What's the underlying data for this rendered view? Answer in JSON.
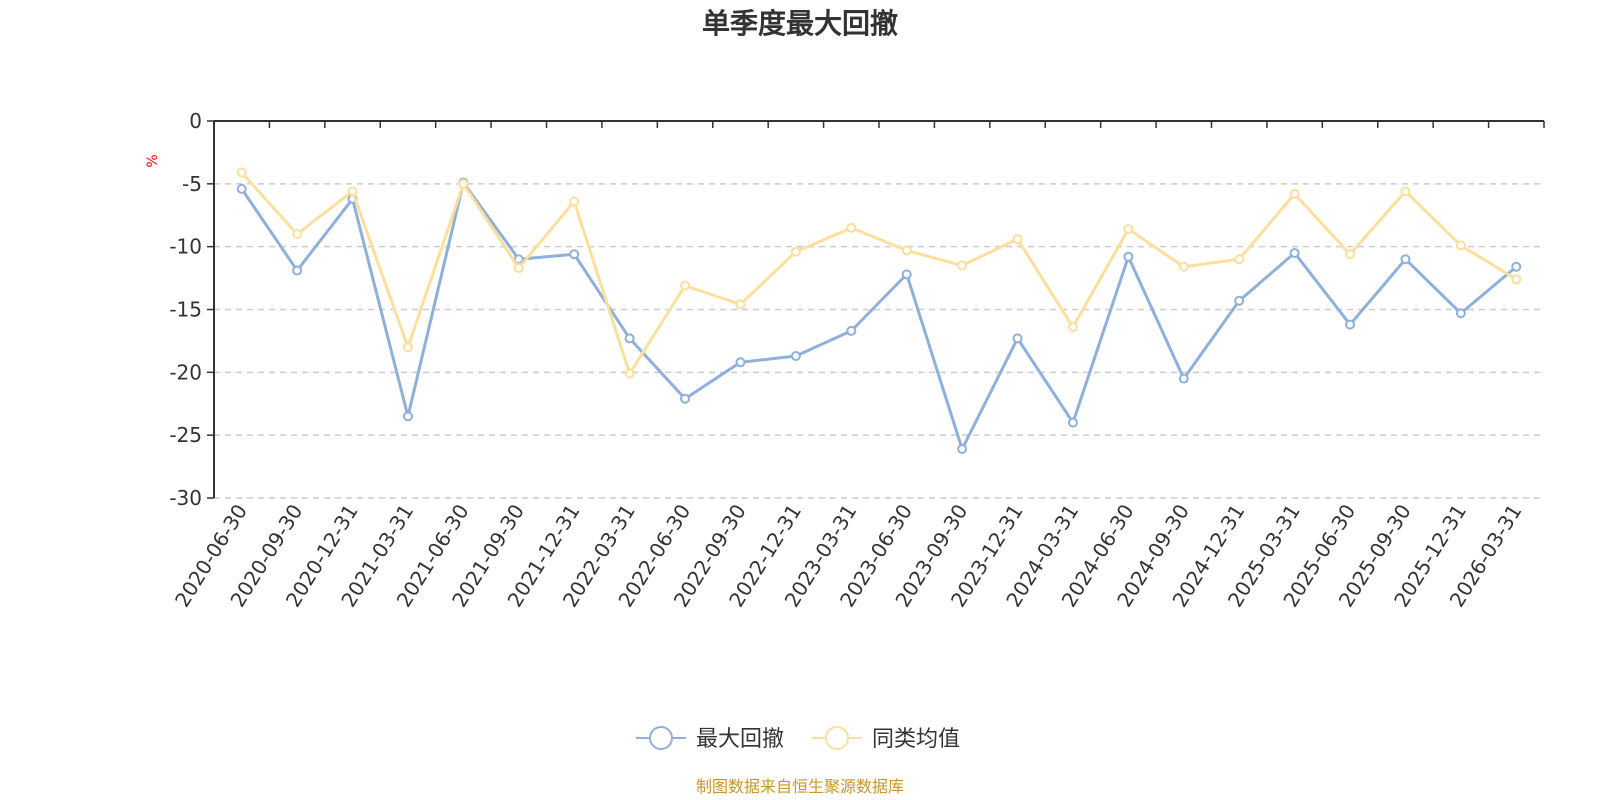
{
  "chart_data": {
    "type": "line",
    "title": "单季度最大回撤",
    "y_unit": "%",
    "ylim": [
      -30,
      0
    ],
    "y_ticks": [
      0,
      -5,
      -10,
      -15,
      -20,
      -25,
      -30
    ],
    "grid": "horizontal dashed",
    "legend_position": "bottom-center",
    "categories": [
      "2020-06-30",
      "2020-09-30",
      "2020-12-31",
      "2021-03-31",
      "2021-06-30",
      "2021-09-30",
      "2021-12-31",
      "2022-03-31",
      "2022-06-30",
      "2022-09-30",
      "2022-12-31",
      "2023-03-31",
      "2023-06-30",
      "2023-09-30",
      "2023-12-31",
      "2024-03-31",
      "2024-06-30",
      "2024-09-30",
      "2024-12-31",
      "2025-03-31",
      "2025-06-30",
      "2025-09-30",
      "2025-12-31",
      "2026-03-31"
    ],
    "series": [
      {
        "name": "最大回撤",
        "color": "#8eb0db",
        "values": [
          -5.4,
          -11.9,
          -6.2,
          -23.5,
          -4.9,
          -11.0,
          -10.6,
          -17.3,
          -22.1,
          -19.2,
          -18.7,
          -16.7,
          -12.2,
          -26.1,
          -17.3,
          -24.0,
          -10.8,
          -20.5,
          -14.3,
          -10.5,
          -16.2,
          -11.0,
          -15.3,
          -11.6
        ]
      },
      {
        "name": "同类均值",
        "color": "#fbdf9c",
        "values": [
          -4.1,
          -9.0,
          -5.6,
          -18.0,
          -5.0,
          -11.7,
          -6.4,
          -20.1,
          -13.1,
          -14.6,
          -10.4,
          -8.5,
          -10.3,
          -11.5,
          -9.4,
          -16.4,
          -8.6,
          -11.6,
          -11.0,
          -5.8,
          -10.6,
          -5.6,
          -9.9,
          -12.6
        ]
      }
    ]
  },
  "footer": {
    "source": "制图数据来自恒生聚源数据库"
  },
  "colors": {
    "axis": "#333333",
    "grid": "#cccccc",
    "unit": "#ff0000",
    "source": "#c9962a"
  }
}
